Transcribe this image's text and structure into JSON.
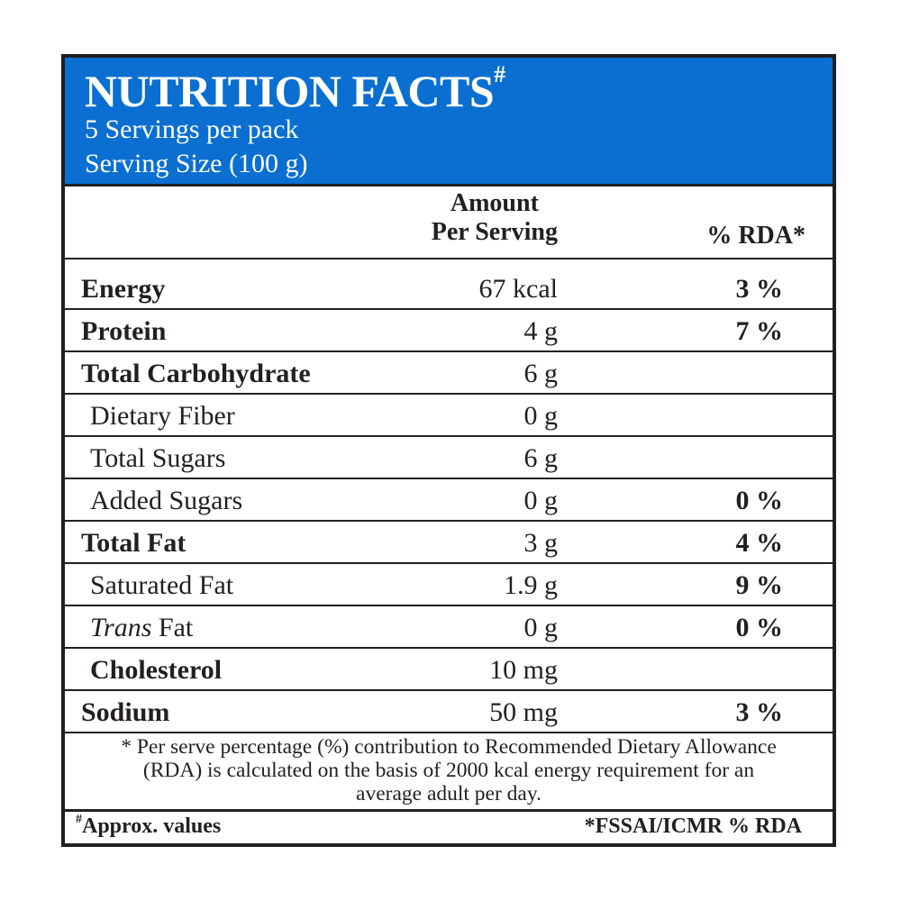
{
  "header": {
    "title": "NUTRITION FACTS",
    "title_mark": "#",
    "servings_per_pack": "5 Servings per pack",
    "serving_size": "Serving Size (100 g)",
    "background_color": "#0a6fd1"
  },
  "columns": {
    "amount_line1": "Amount",
    "amount_line2": "Per Serving",
    "rda": "% RDA*"
  },
  "rows": [
    {
      "name": "Energy",
      "amount": "67 kcal",
      "rda": "3 %"
    },
    {
      "name": "Protein",
      "amount": "4 g",
      "rda": "7 %"
    },
    {
      "name": "Total Carbohydrate",
      "amount": "6 g",
      "rda": ""
    },
    {
      "name": "Dietary Fiber",
      "amount": "0 g",
      "rda": ""
    },
    {
      "name": "Total Sugars",
      "amount": "6 g",
      "rda": ""
    },
    {
      "name": "Added Sugars",
      "amount": "0 g",
      "rda": "0 %"
    },
    {
      "name": "Total Fat",
      "amount": "3 g",
      "rda": "4 %"
    },
    {
      "name": "Saturated Fat",
      "amount": "1.9 g",
      "rda": "9 %"
    },
    {
      "name_italic": "Trans",
      "name": " Fat",
      "amount": "0 g",
      "rda": "0 %"
    },
    {
      "name": "Cholesterol",
      "amount": "10 mg",
      "rda": ""
    },
    {
      "name": "Sodium",
      "amount": "50 mg",
      "rda": "3 %"
    }
  ],
  "footnote": {
    "line1": "* Per serve percentage (%) contribution to Recommended Dietary Allowance",
    "line2": "(RDA) is calculated on the basis of 2000 kcal energy requirement for an",
    "line3": "average adult per day."
  },
  "footer": {
    "approx_mark": "#",
    "approx": "Approx. values",
    "source": "*FSSAI/ICMR % RDA"
  }
}
